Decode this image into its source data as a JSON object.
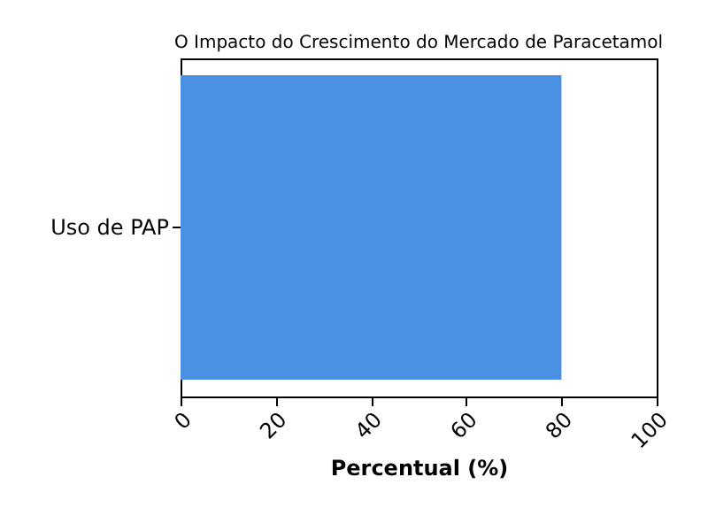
{
  "chart_data": {
    "type": "bar",
    "orientation": "horizontal",
    "title": "O Impacto do Crescimento do Mercado de Paracetamol",
    "categories": [
      "Uso de PAP"
    ],
    "values": [
      80
    ],
    "color": "#4a90e2",
    "xlabel": "Percentual (%)",
    "xlim": [
      0,
      100
    ],
    "xticks": [
      0,
      20,
      40,
      60,
      80,
      100
    ],
    "grid": false
  }
}
